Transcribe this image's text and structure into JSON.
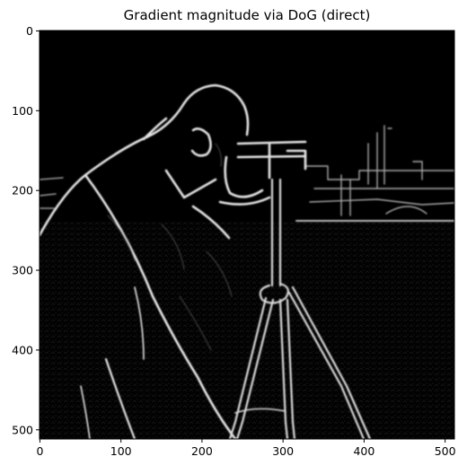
{
  "figure": {
    "title": "Gradient magnitude via DoG (direct)",
    "x_ticks": [
      "0",
      "100",
      "200",
      "300",
      "400",
      "500"
    ],
    "y_ticks": [
      "0",
      "100",
      "200",
      "300",
      "400",
      "500"
    ],
    "x_tick_values": [
      0,
      100,
      200,
      300,
      400,
      500
    ],
    "y_tick_values": [
      0,
      100,
      200,
      300,
      400,
      500
    ],
    "extent": [
      0,
      512
    ],
    "image_background": "#000000",
    "edge_color": "#e6e6e6"
  }
}
